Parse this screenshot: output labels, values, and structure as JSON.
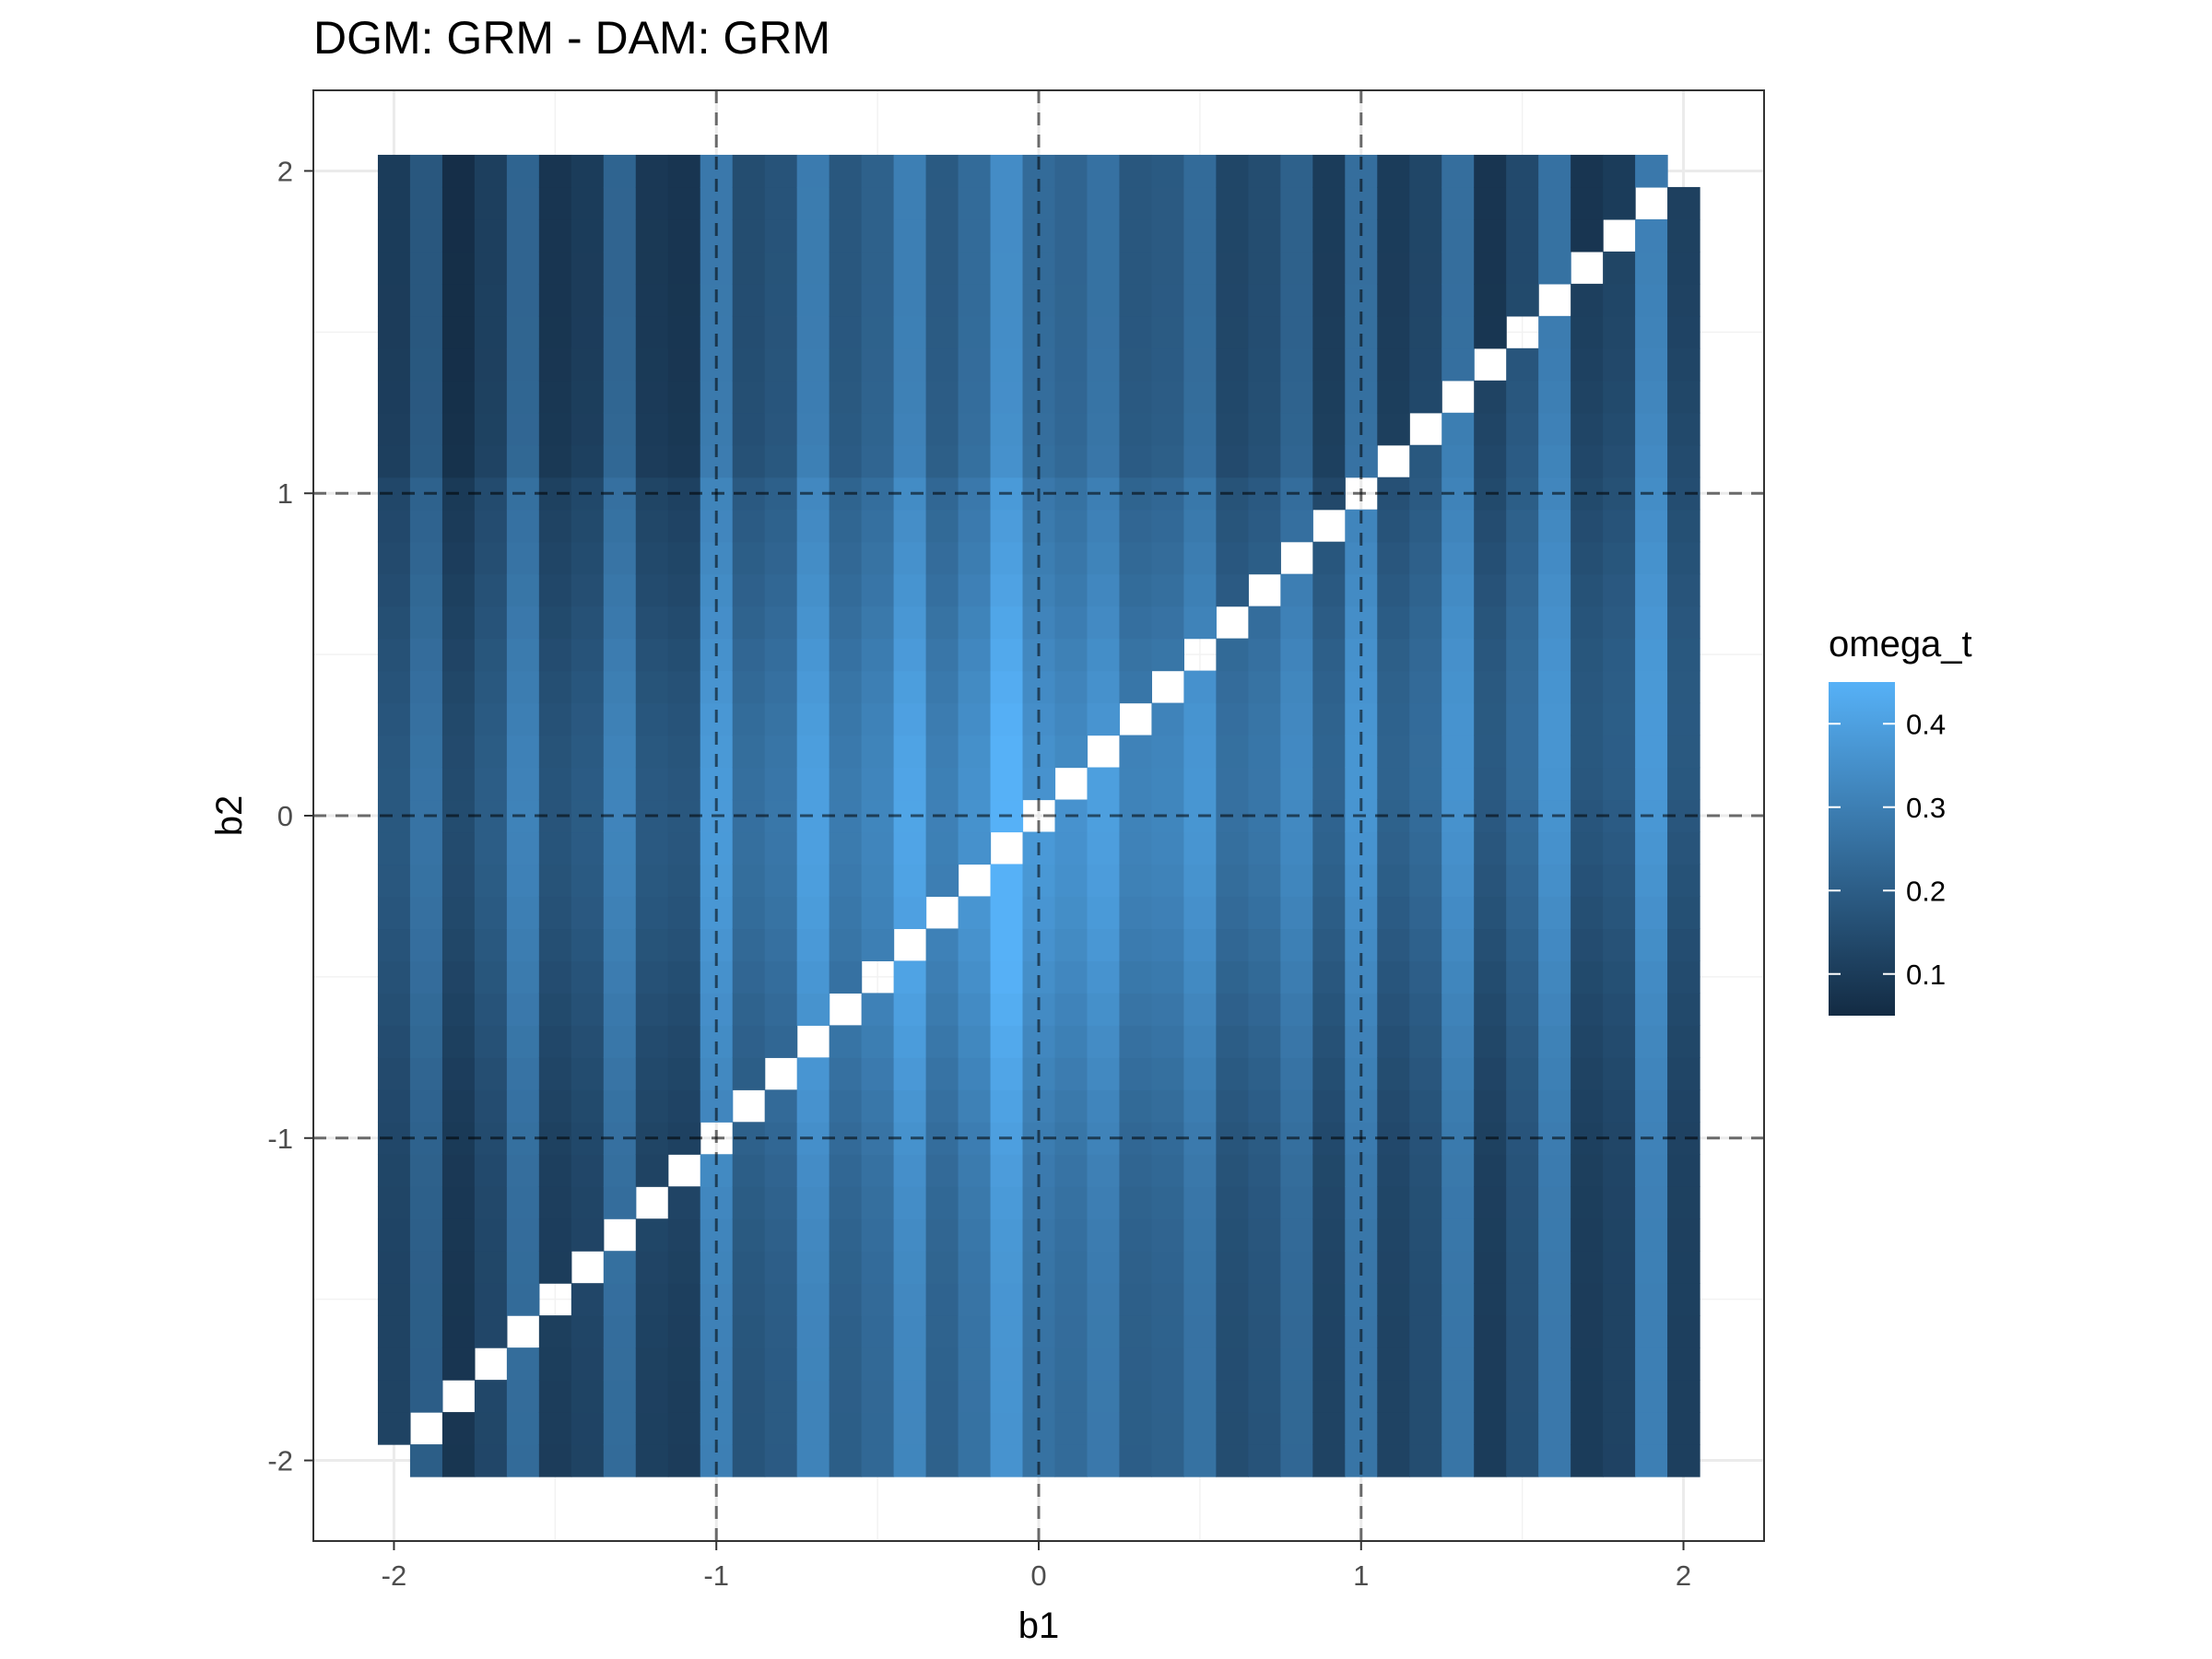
{
  "chart_data": {
    "type": "heatmap",
    "title": "DGM: GRM - DAM: GRM",
    "xlabel": "b1",
    "ylabel": "b2",
    "xlim": [
      -2.25,
      2.25
    ],
    "ylim": [
      -2.25,
      2.25
    ],
    "x_ticks": [
      "-2",
      "-1",
      "0",
      "1",
      "2"
    ],
    "y_ticks": [
      "-2",
      "-1",
      "0",
      "1",
      "2"
    ],
    "x_tick_values": [
      -2,
      -1,
      0,
      1,
      2
    ],
    "y_tick_values": [
      -2,
      -1,
      0,
      1,
      2
    ],
    "grid": true,
    "reference_lines": {
      "style": "dashed",
      "x": [
        -1,
        0,
        1
      ],
      "y": [
        -1,
        0,
        1
      ]
    },
    "cell_grid": {
      "b1_min": -2,
      "b1_max": 2,
      "b2_min": -2,
      "b2_max": 2,
      "step": 0.1
    },
    "column_base_values": [
      0.12,
      0.2,
      0.08,
      0.13,
      0.24,
      0.1,
      0.12,
      0.24,
      0.11,
      0.1,
      0.3,
      0.17,
      0.19,
      0.31,
      0.2,
      0.23,
      0.32,
      0.21,
      0.26,
      0.36,
      0.26,
      0.24,
      0.28,
      0.2,
      0.21,
      0.26,
      0.15,
      0.17,
      0.23,
      0.12,
      0.27,
      0.12,
      0.15,
      0.27,
      0.1,
      0.16,
      0.28,
      0.1,
      0.12,
      0.3,
      0.11
    ],
    "diagonal": "b1 = b2 (undefined, shown blank)",
    "legend": {
      "title": "omega_t",
      "placement": "right",
      "min": 0.05,
      "max": 0.45,
      "ticks": [
        "0.1",
        "0.2",
        "0.3",
        "0.4"
      ],
      "tick_values": [
        0.1,
        0.2,
        0.3,
        0.4
      ],
      "low_color": "#132B43",
      "high_color": "#56B1F7"
    }
  }
}
